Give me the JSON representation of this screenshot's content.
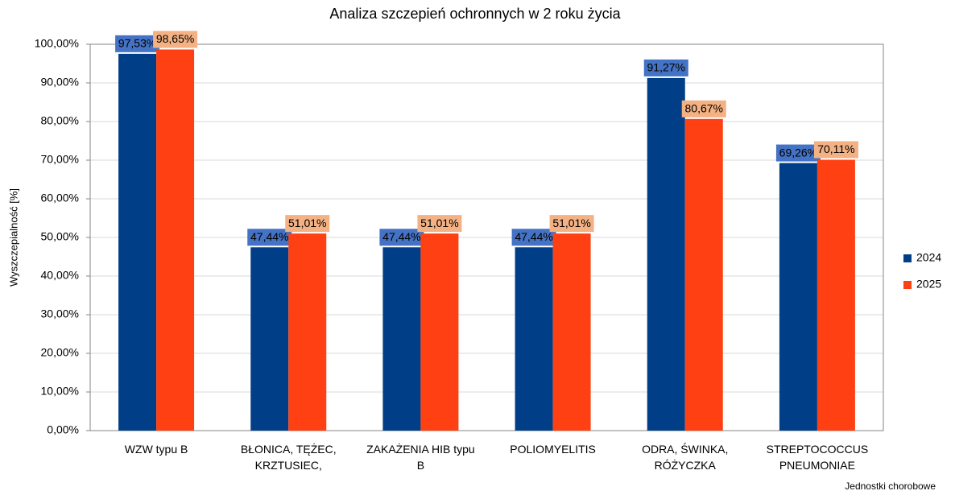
{
  "chart_data": {
    "type": "bar",
    "title": "Analiza szczepień ochronnych w 2 roku życia",
    "y_label": "Wyszczepialność [%]",
    "x_label": "Jednostki chorobowe",
    "categories": [
      "WZW typu B",
      "BŁONICA, TĘŻEC,\nKRZTUSIEC,",
      "ZAKAŻENIA HIB typu\nB",
      "POLIOMYELITIS",
      "ODRA, ŚWINKA,\nRÓŻYCZKA",
      "STREPTOCOCCUS\nPNEUMONIAE"
    ],
    "series": [
      {
        "name": "2024",
        "color": "#003f87",
        "label_color": "#4472c4",
        "values": [
          97.53,
          47.44,
          47.44,
          47.44,
          91.27,
          69.26
        ],
        "value_labels": [
          "97,53%",
          "47,44%",
          "47,44%",
          "47,44%",
          "91,27%",
          "69,26%"
        ]
      },
      {
        "name": "2025",
        "color": "#ff4013",
        "label_color": "#f4b183",
        "values": [
          98.65,
          51.01,
          51.01,
          51.01,
          80.67,
          70.11
        ],
        "value_labels": [
          "98,65%",
          "51,01%",
          "51,01%",
          "51,01%",
          "80,67%",
          "70,11%"
        ]
      }
    ],
    "ylim": [
      0,
      100
    ],
    "yticks": [
      {
        "value": 0,
        "label": "0,00%"
      },
      {
        "value": 10,
        "label": "10,00%"
      },
      {
        "value": 20,
        "label": "20,00%"
      },
      {
        "value": 30,
        "label": "30,00%"
      },
      {
        "value": 40,
        "label": "40,00%"
      },
      {
        "value": 50,
        "label": "50,00%"
      },
      {
        "value": 60,
        "label": "60,00%"
      },
      {
        "value": 70,
        "label": "70,00%"
      },
      {
        "value": 80,
        "label": "80,00%"
      },
      {
        "value": 90,
        "label": "90,00%"
      },
      {
        "value": 100,
        "label": "100,00%"
      }
    ],
    "grid": true,
    "legend": "right"
  }
}
